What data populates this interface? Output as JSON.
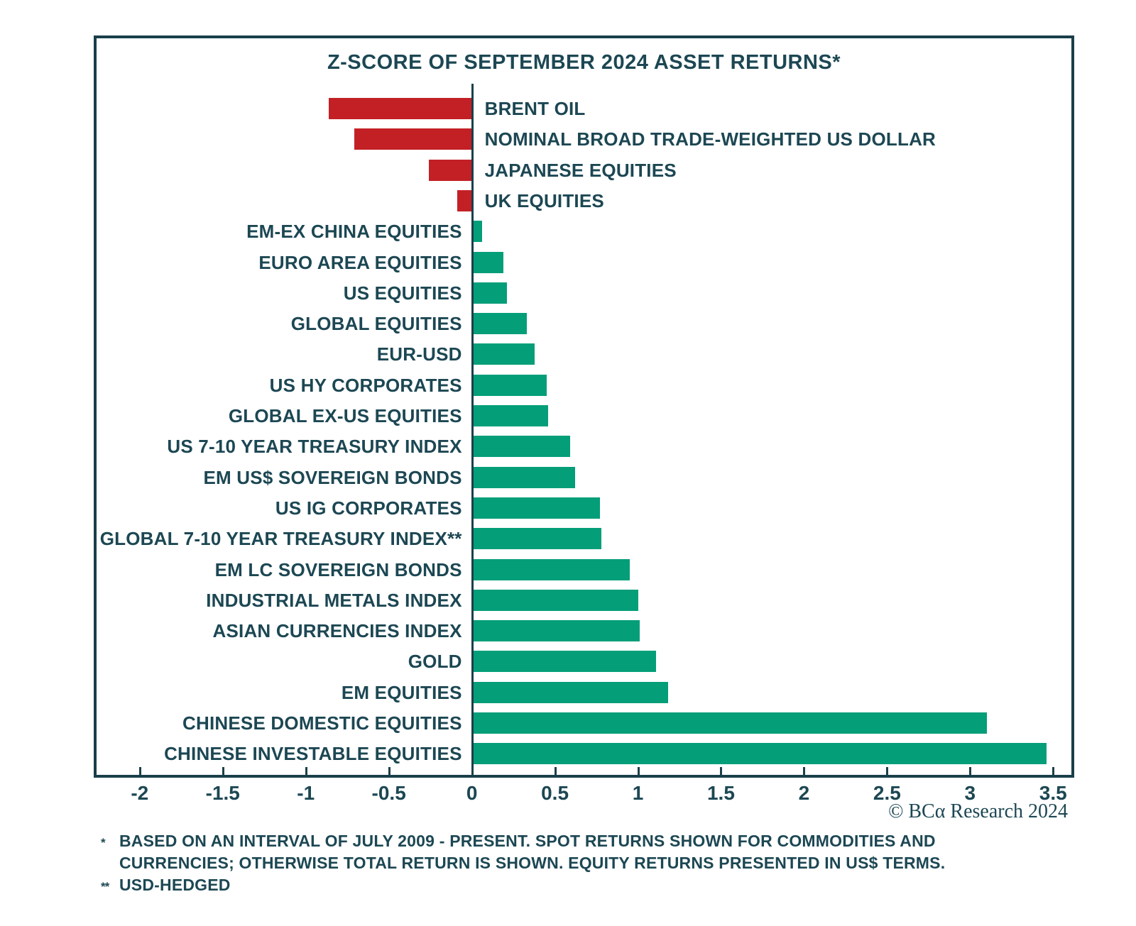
{
  "title": "Z-SCORE OF SEPTEMBER 2024 ASSET RETURNS*",
  "attribution": "© BCα Research 2024",
  "footnotes": {
    "star1_marker": "*",
    "star1_line1": "BASED ON AN INTERVAL OF JULY 2009 - PRESENT. SPOT RETURNS SHOWN FOR COMMODITIES AND",
    "star1_line2": "CURRENCIES; OTHERWISE TOTAL RETURN IS SHOWN. EQUITY RETURNS PRESENTED IN US$ TERMS.",
    "star2_marker": "**",
    "star2_text": "USD-HEDGED"
  },
  "colors": {
    "negative": "#c32026",
    "positive": "#049e79",
    "text": "#1c4753",
    "border": "#193f4a"
  },
  "chart_data": {
    "type": "bar",
    "orientation": "horizontal",
    "title": "Z-SCORE OF SEPTEMBER 2024 ASSET RETURNS*",
    "categories": [
      "BRENT OIL",
      "NOMINAL BROAD TRADE-WEIGHTED US DOLLAR",
      "JAPANESE EQUITIES",
      "UK EQUITIES",
      "EM-EX CHINA EQUITIES",
      "EURO AREA EQUITIES",
      "US EQUITIES",
      "GLOBAL EQUITIES",
      "EUR-USD",
      "US HY CORPORATES",
      "GLOBAL EX-US EQUITIES",
      "US 7-10 YEAR TREASURY INDEX",
      "EM US$ SOVEREIGN BONDS",
      "US IG CORPORATES",
      "GLOBAL 7-10 YEAR TREASURY INDEX**",
      "EM LC SOVEREIGN BONDS",
      "INDUSTRIAL METALS INDEX",
      "ASIAN CURRENCIES INDEX",
      "GOLD",
      "EM EQUITIES",
      "CHINESE DOMESTIC EQUITIES",
      "CHINESE INVESTABLE EQUITIES"
    ],
    "values": [
      -0.86,
      -0.71,
      -0.26,
      -0.09,
      0.06,
      0.19,
      0.21,
      0.33,
      0.38,
      0.45,
      0.46,
      0.59,
      0.62,
      0.77,
      0.78,
      0.95,
      1.0,
      1.01,
      1.11,
      1.18,
      3.1,
      3.46
    ],
    "xlabel": "",
    "ylabel": "",
    "axis": {
      "min": -2.26,
      "max": 3.61
    },
    "ticks": [
      -2,
      -1.5,
      -1,
      -0.5,
      0,
      0.5,
      1,
      1.5,
      2,
      2.5,
      3,
      3.5
    ],
    "tick_labels": [
      "-2",
      "-1.5",
      "-1",
      "-0.5",
      "0",
      "0.5",
      "1",
      "1.5",
      "2",
      "2.5",
      "3",
      "3.5"
    ],
    "grid": false,
    "legend": false
  }
}
